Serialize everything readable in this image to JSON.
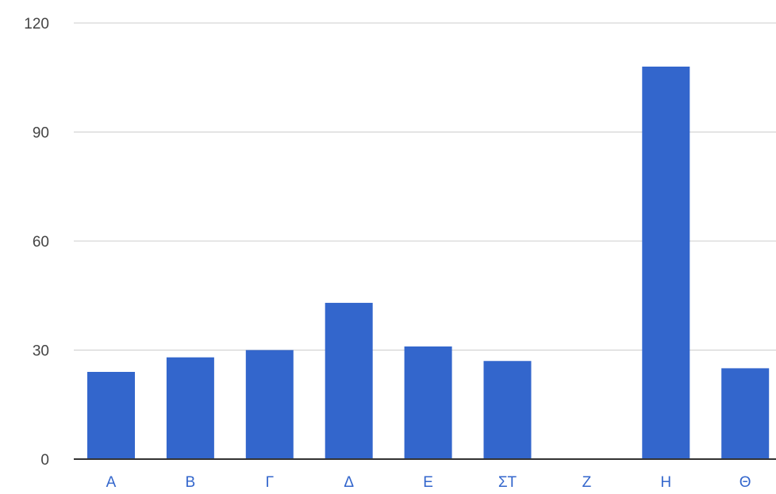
{
  "chart_data": {
    "type": "bar",
    "title": "",
    "xlabel": "",
    "ylabel": "",
    "categories": [
      "Α",
      "Β",
      "Γ",
      "Δ",
      "Ε",
      "ΣΤ",
      "Ζ",
      "Η",
      "Θ"
    ],
    "values": [
      24,
      28,
      30,
      43,
      31,
      27,
      0,
      108,
      25
    ],
    "ylim": [
      0,
      120
    ],
    "yticks": [
      "0",
      "30",
      "60",
      "90",
      "120"
    ],
    "grid": true,
    "legend": "none",
    "colors": {
      "bar": "#3366cc",
      "x_tick_label": "#3366cc",
      "y_tick_label": "#444444",
      "grid": "#cccccc",
      "baseline": "#333333"
    }
  }
}
